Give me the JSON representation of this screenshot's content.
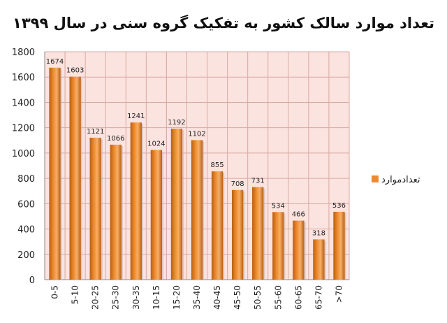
{
  "chart_data": {
    "type": "bar",
    "title": "تعداد موارد سالک کشور به تفکیک گروه سنی در سال ۱۳۹۹",
    "categories": [
      "0-5",
      "5-10",
      "20-25",
      "25-30",
      "30-35",
      "10-15",
      "15-20",
      "35-40",
      "40-45",
      "45-50",
      "50-55",
      "55-60",
      "60-65",
      "65-70",
      ">70"
    ],
    "series": [
      {
        "name": "تعدادموارد",
        "values": [
          1674,
          1603,
          1121,
          1066,
          1241,
          1024,
          1192,
          1102,
          855,
          708,
          731,
          534,
          466,
          318,
          536
        ]
      }
    ],
    "ylim": [
      0,
      1800
    ],
    "yticks": [
      0,
      200,
      400,
      600,
      800,
      1000,
      1200,
      1400,
      1600,
      1800
    ],
    "grid": true,
    "legend": "right",
    "colors": {
      "bar": "#ee8a2d",
      "bar_dark": "#b85f12",
      "bar_light": "#f6ae68",
      "plot_bg": "#fbe3df",
      "grid": "#d9a8a3"
    }
  }
}
